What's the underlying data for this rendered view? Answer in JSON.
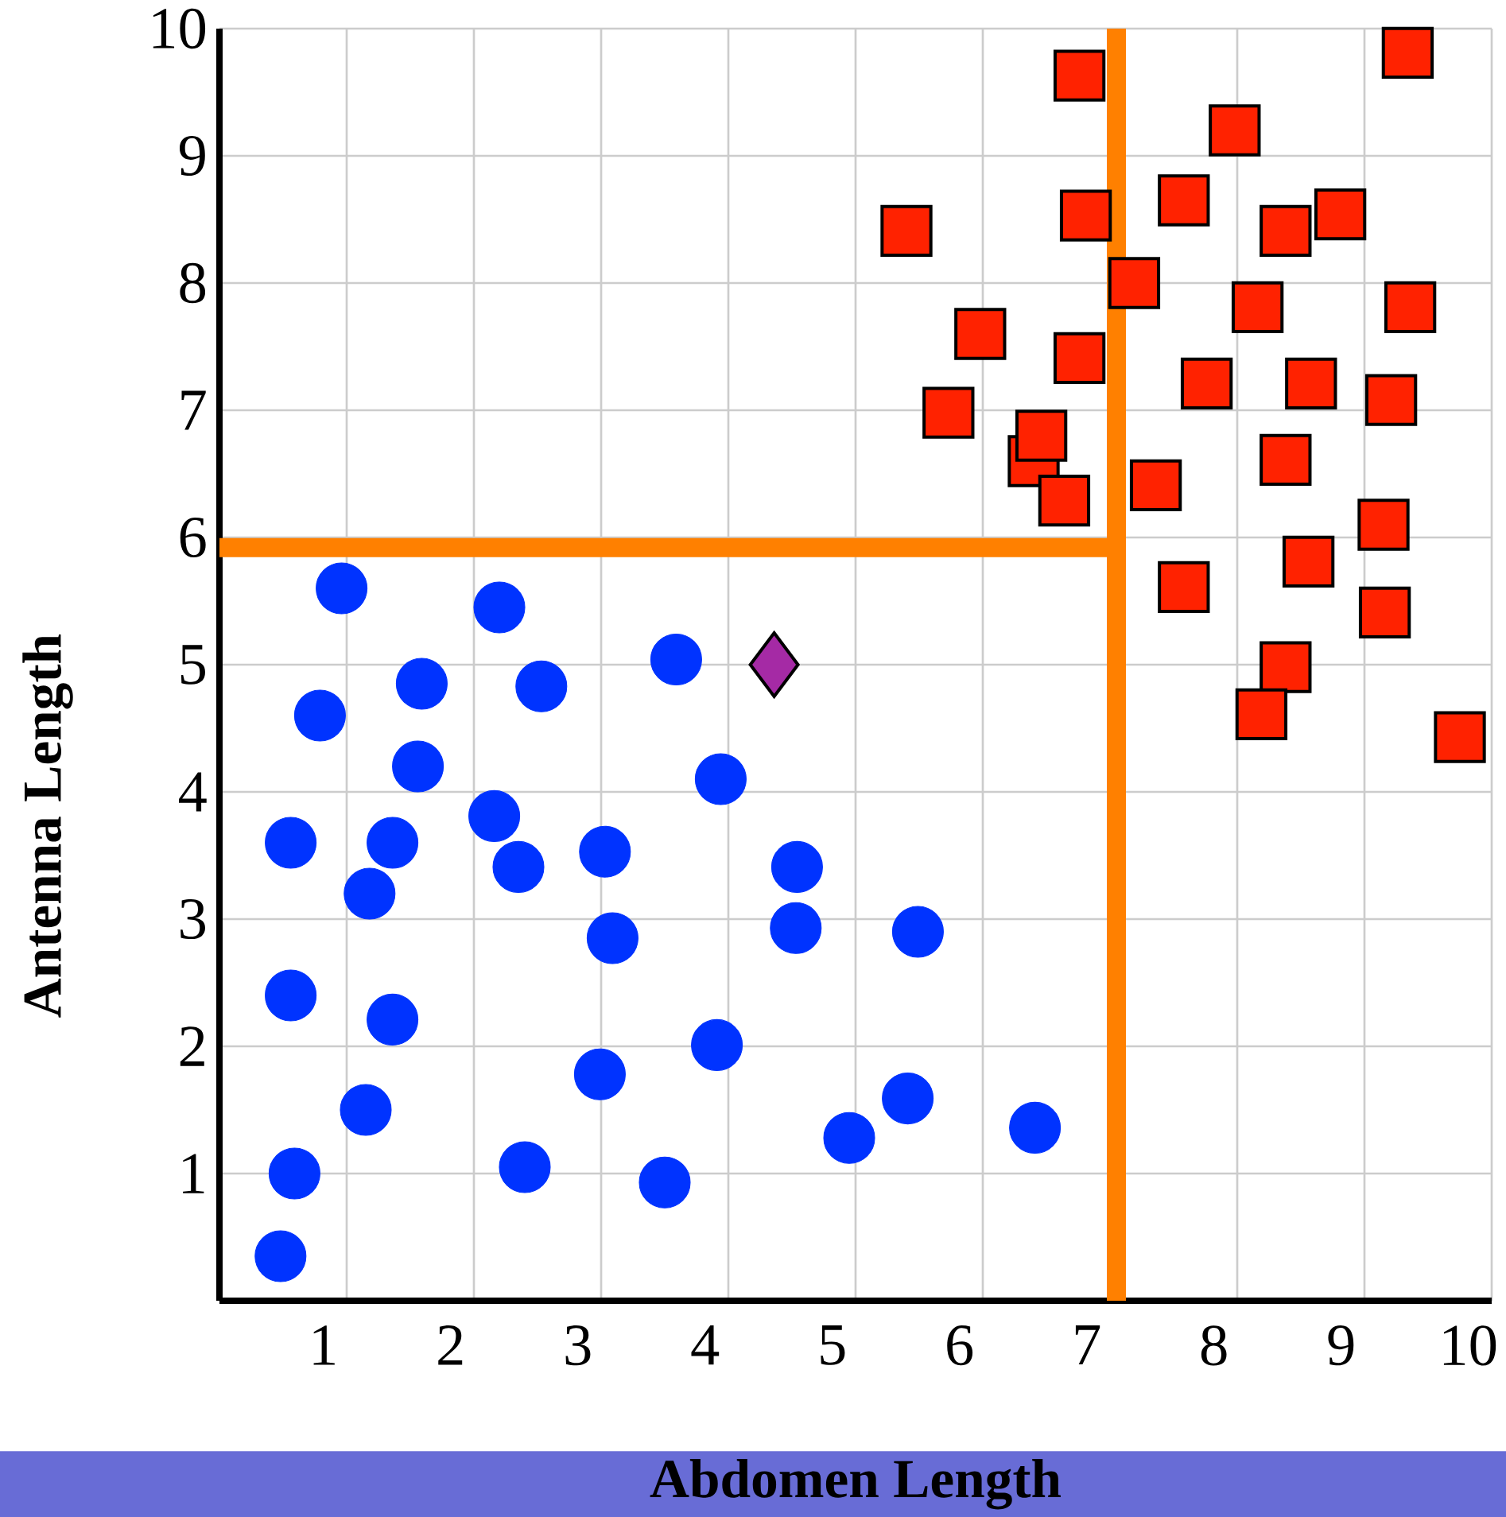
{
  "chart_data": {
    "type": "scatter",
    "xlabel": "Abdomen Length",
    "ylabel": "Antenna Length",
    "xlim": [
      0,
      10
    ],
    "ylim": [
      0,
      10
    ],
    "xticks": [
      1,
      2,
      3,
      4,
      5,
      6,
      7,
      8,
      9,
      10
    ],
    "yticks": [
      1,
      2,
      3,
      4,
      5,
      6,
      7,
      8,
      9,
      10
    ],
    "grid": true,
    "series": [
      {
        "type": "line",
        "marker": "none",
        "color": "#ff8000",
        "x": [
          0,
          7.05
        ],
        "values": [
          5.92,
          5.92
        ]
      },
      {
        "type": "line",
        "marker": "none",
        "color": "#ff8000",
        "x": [
          7.05,
          7.05
        ],
        "values": [
          0,
          10
        ]
      },
      {
        "marker": "circle",
        "color": "#0033ff",
        "x": [
          0.96,
          0.79,
          1.59,
          1.56,
          0.56,
          1.36,
          1.18,
          0.56,
          1.36,
          1.15,
          0.59,
          0.48,
          2.2,
          2.53,
          2.16,
          2.35,
          3.59,
          3.94,
          3.03,
          3.09,
          4.54,
          4.53,
          5.49,
          3.91,
          2.99,
          2.4,
          3.5,
          4.95,
          5.41,
          6.41
        ],
        "values": [
          5.6,
          4.6,
          4.85,
          4.2,
          3.6,
          3.6,
          3.2,
          2.4,
          2.21,
          1.5,
          1.0,
          0.35,
          5.45,
          4.83,
          3.81,
          3.41,
          5.04,
          4.1,
          3.53,
          2.85,
          3.41,
          2.93,
          2.9,
          2.01,
          1.78,
          1.05,
          0.93,
          1.28,
          1.59,
          1.36
        ]
      },
      {
        "marker": "square",
        "color": "#ff2200",
        "x": [
          6.76,
          9.34,
          7.98,
          5.4,
          6.81,
          7.58,
          8.38,
          8.81,
          7.19,
          5.98,
          8.16,
          9.36,
          6.76,
          5.73,
          7.76,
          8.58,
          9.21,
          6.4,
          6.46,
          6.64,
          7.36,
          8.38,
          9.15,
          8.56,
          7.58,
          9.16,
          8.38,
          8.19,
          9.75
        ],
        "values": [
          9.63,
          9.81,
          9.2,
          8.41,
          8.53,
          8.65,
          8.41,
          8.54,
          8.0,
          7.6,
          7.81,
          7.81,
          7.41,
          6.98,
          7.21,
          7.21,
          7.08,
          6.6,
          6.8,
          6.29,
          6.41,
          6.61,
          6.1,
          5.81,
          5.61,
          5.41,
          4.98,
          4.61,
          4.43
        ]
      },
      {
        "marker": "diamond",
        "color": "#a52aa5",
        "x": [
          4.36
        ],
        "values": [
          5.0
        ]
      }
    ]
  }
}
